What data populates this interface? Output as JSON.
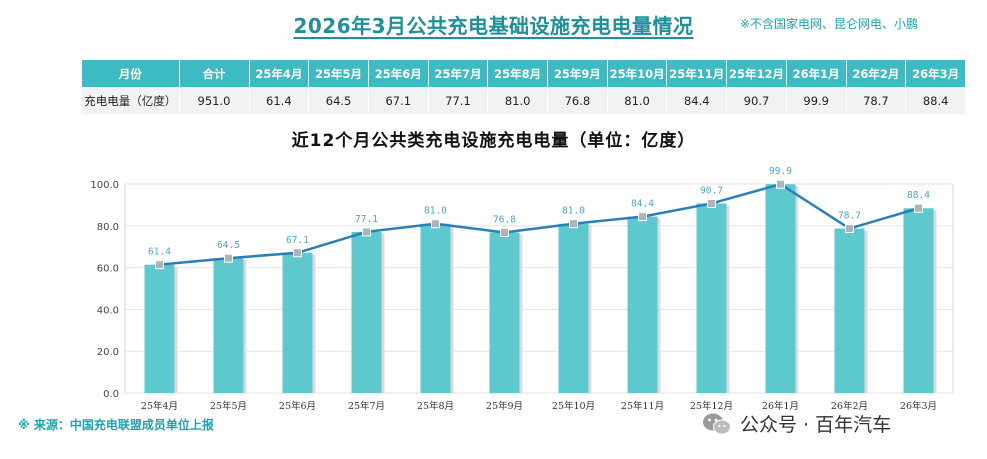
{
  "title": "2026年3月公共充电基础设施充电电量情况",
  "note": "※不含国家电网、昆仑网电、小鹏",
  "table": {
    "headers": [
      "月份",
      "合计",
      "25年4月",
      "25年5月",
      "25年6月",
      "25年7月",
      "25年8月",
      "25年9月",
      "25年10月",
      "25年11月",
      "25年12月",
      "26年1月",
      "26年2月",
      "26年3月"
    ],
    "row": [
      "充电电量（亿度）",
      "951.0",
      "61.4",
      "64.5",
      "67.1",
      "77.1",
      "81.0",
      "76.8",
      "81.0",
      "84.4",
      "90.7",
      "99.9",
      "78.7",
      "88.4"
    ]
  },
  "source": "※ 来源：中国充电联盟成员单位上报",
  "brand": "公众号 · 百年汽车",
  "colors": {
    "accent": "#1f8f9a",
    "bar": "#5ec8cf",
    "line": "#2b7fb8",
    "header": "#3dbac2",
    "label": "#4aa7c9"
  },
  "icons": {
    "wechat": "wechat-icon"
  },
  "chart_data": {
    "type": "bar",
    "title": "近12个月公共类充电设施充电电量（单位：亿度）",
    "categories": [
      "25年4月",
      "25年5月",
      "25年6月",
      "25年7月",
      "25年8月",
      "25年9月",
      "25年10月",
      "25年11月",
      "25年12月",
      "26年1月",
      "26年2月",
      "26年3月"
    ],
    "values": [
      61.4,
      64.5,
      67.1,
      77.1,
      81.0,
      76.8,
      81.0,
      84.4,
      90.7,
      99.9,
      78.7,
      88.4
    ],
    "labels": [
      "61.4",
      "64.5",
      "67.1",
      "77.1",
      "81.0",
      "76.8",
      "81.0",
      "84.4",
      "90.7",
      "99.9",
      "78.7",
      "88.4"
    ],
    "overlay": "line",
    "ylim": [
      0,
      100
    ],
    "yticks": [
      "0.0",
      "20.0",
      "40.0",
      "60.0",
      "80.0",
      "100.0"
    ],
    "ytick_values": [
      0,
      20,
      40,
      60,
      80,
      100
    ],
    "grid": true,
    "legend": "none"
  }
}
